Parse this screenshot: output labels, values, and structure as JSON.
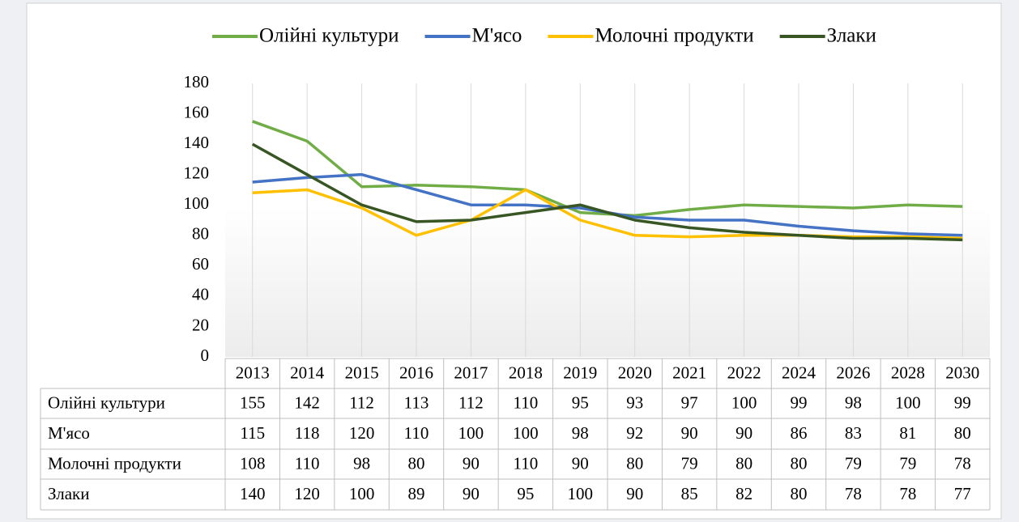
{
  "chart_data": {
    "type": "line",
    "categories": [
      "2013",
      "2014",
      "2015",
      "2016",
      "2017",
      "2018",
      "2019",
      "2020",
      "2021",
      "2022",
      "2024",
      "2026",
      "2028",
      "2030"
    ],
    "series": [
      {
        "name": "Олійні культури",
        "color": "#70ad47",
        "values": [
          155,
          142,
          112,
          113,
          112,
          110,
          95,
          93,
          97,
          100,
          99,
          98,
          100,
          99
        ]
      },
      {
        "name": "М'ясо",
        "color": "#4472c4",
        "values": [
          115,
          118,
          120,
          110,
          100,
          100,
          98,
          92,
          90,
          90,
          86,
          83,
          81,
          80
        ]
      },
      {
        "name": "Молочні продукти",
        "color": "#ffc000",
        "values": [
          108,
          110,
          98,
          80,
          90,
          110,
          90,
          80,
          79,
          80,
          80,
          79,
          79,
          78
        ]
      },
      {
        "name": "Злаки",
        "color": "#375623",
        "values": [
          140,
          120,
          100,
          89,
          90,
          95,
          100,
          90,
          85,
          82,
          80,
          78,
          78,
          77
        ]
      }
    ],
    "ylim": [
      0,
      180
    ],
    "yticks": [
      0,
      20,
      40,
      60,
      80,
      100,
      120,
      140,
      160,
      180
    ],
    "grid": "x",
    "legend": "top",
    "data_table": true
  }
}
